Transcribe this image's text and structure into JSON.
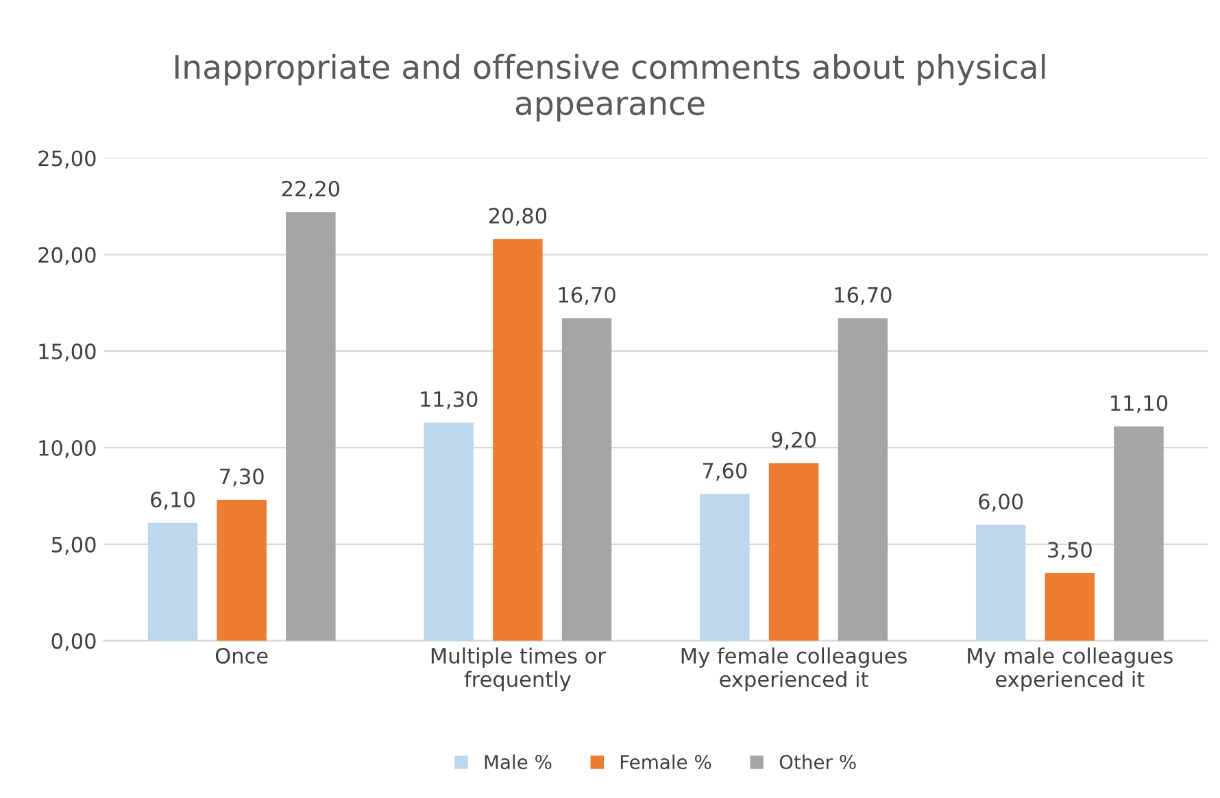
{
  "chart_data": {
    "type": "bar",
    "title": "Inappropriate and offensive comments about physical\nappearance",
    "categories": [
      "Once",
      "Multiple times or\nfrequently",
      "My female colleagues\nexperienced it",
      "My male colleagues\nexperienced it"
    ],
    "series": [
      {
        "name": "Male %",
        "color": "#bdd7ee",
        "values": [
          6.1,
          11.3,
          7.6,
          6.0
        ],
        "value_labels": [
          "6,10",
          "11,30",
          "7,60",
          "6,00"
        ]
      },
      {
        "name": "Female %",
        "color": "#ed7d31",
        "values": [
          7.3,
          20.8,
          9.2,
          3.5
        ],
        "value_labels": [
          "7,30",
          "20,80",
          "9,20",
          "3,50"
        ]
      },
      {
        "name": "Other %",
        "color": "#a5a5a5",
        "values": [
          22.2,
          16.7,
          16.7,
          11.1
        ],
        "value_labels": [
          "22,20",
          "16,70",
          "16,70",
          "11,10"
        ]
      }
    ],
    "ylim": [
      0,
      25
    ],
    "yticks": [
      {
        "value": 0,
        "label": "0,00"
      },
      {
        "value": 5,
        "label": "5,00"
      },
      {
        "value": 10,
        "label": "10,00"
      },
      {
        "value": 15,
        "label": "15,00"
      },
      {
        "value": 20,
        "label": "20,00"
      },
      {
        "value": 25,
        "label": "25,00"
      }
    ],
    "grid": "y",
    "legend": "bottom"
  }
}
